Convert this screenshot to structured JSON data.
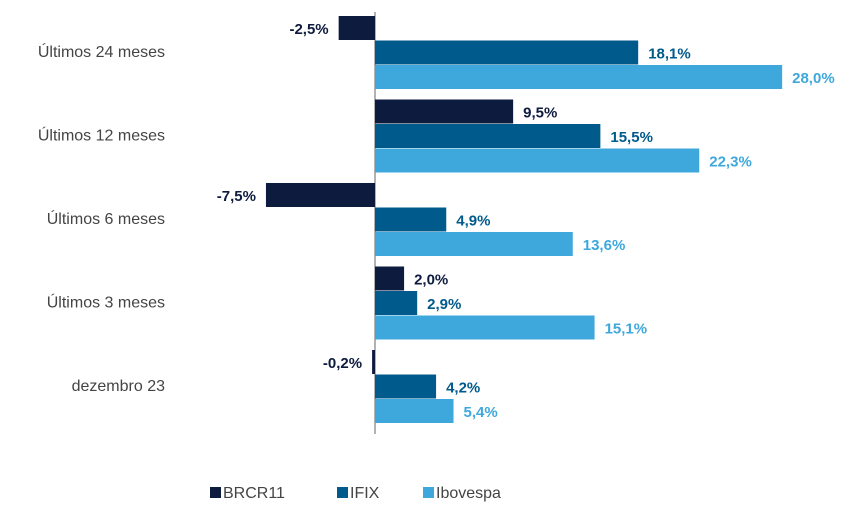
{
  "chart_data": {
    "type": "barh",
    "categories": [
      "Últimos 24 meses",
      "Últimos 12 meses",
      "Últimos 6 meses",
      "Últimos 3 meses",
      "dezembro 23"
    ],
    "series": [
      {
        "name": "BRCR11",
        "color": "#0d1b3e",
        "values": [
          -2.5,
          9.5,
          -7.5,
          2.0,
          -0.2
        ],
        "value_labels": [
          "-2,5%",
          "9,5%",
          "-7,5%",
          "2,0%",
          "-0,2%"
        ]
      },
      {
        "name": "IFIX",
        "color": "#005a8c",
        "values": [
          18.1,
          15.5,
          4.9,
          2.9,
          4.2
        ],
        "value_labels": [
          "18,1%",
          "15,5%",
          "4,9%",
          "2,9%",
          "4,2%"
        ]
      },
      {
        "name": "Ibovespa",
        "color": "#3ea8dc",
        "values": [
          28.0,
          22.3,
          13.6,
          15.1,
          5.4
        ],
        "value_labels": [
          "28,0%",
          "22,3%",
          "13,6%",
          "15,1%",
          "5,4%"
        ]
      }
    ],
    "xlim": [
      -12.5,
      32
    ],
    "legend": "bottom"
  }
}
